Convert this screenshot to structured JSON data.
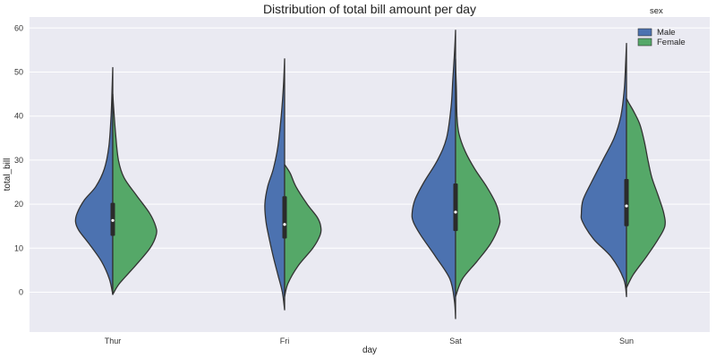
{
  "chart_data": {
    "type": "violin",
    "title": "Distribution of total bill amount per day",
    "xlabel": "day",
    "ylabel": "total_bill",
    "categories": [
      "Thur",
      "Fri",
      "Sat",
      "Sun"
    ],
    "ylim": [
      -9,
      63
    ],
    "yticks": [
      0,
      10,
      20,
      30,
      40,
      50,
      60
    ],
    "grid": true,
    "legend": {
      "title": "sex",
      "placement": "top-right"
    },
    "colors": {
      "Male": "#4c72b0",
      "Female": "#55a868",
      "background": "#eaeaf2",
      "grid": "#ffffff",
      "outline": "#333333",
      "box": "#2b2b2b"
    },
    "series": [
      {
        "name": "Male",
        "violins": [
          {
            "day": "Thur",
            "min": -0.5,
            "max": 51,
            "profile": [
              [
                -0.5,
                0
              ],
              [
                3,
                0.06
              ],
              [
                7,
                0.2
              ],
              [
                11,
                0.42
              ],
              [
                14,
                0.6
              ],
              [
                16,
                0.66
              ],
              [
                18,
                0.63
              ],
              [
                21,
                0.5
              ],
              [
                24,
                0.3
              ],
              [
                28,
                0.15
              ],
              [
                33,
                0.07
              ],
              [
                40,
                0.03
              ],
              [
                47,
                0.01
              ],
              [
                51,
                0
              ]
            ]
          },
          {
            "day": "Fri",
            "min": -4,
            "max": 53,
            "profile": [
              [
                -4,
                0
              ],
              [
                0,
                0.04
              ],
              [
                4,
                0.12
              ],
              [
                8,
                0.2
              ],
              [
                12,
                0.27
              ],
              [
                16,
                0.33
              ],
              [
                20,
                0.35
              ],
              [
                24,
                0.3
              ],
              [
                28,
                0.2
              ],
              [
                33,
                0.12
              ],
              [
                40,
                0.06
              ],
              [
                47,
                0.02
              ],
              [
                53,
                0
              ]
            ]
          },
          {
            "day": "Sat",
            "min": -6,
            "max": 59.5,
            "profile": [
              [
                -6,
                0
              ],
              [
                -2,
                0.02
              ],
              [
                3,
                0.1
              ],
              [
                8,
                0.35
              ],
              [
                13,
                0.62
              ],
              [
                16,
                0.75
              ],
              [
                18,
                0.77
              ],
              [
                21,
                0.72
              ],
              [
                25,
                0.56
              ],
              [
                30,
                0.32
              ],
              [
                35,
                0.16
              ],
              [
                42,
                0.08
              ],
              [
                48,
                0.05
              ],
              [
                52,
                0.03
              ],
              [
                56,
                0.012
              ],
              [
                59.5,
                0
              ]
            ]
          },
          {
            "day": "Sun",
            "min": -1,
            "max": 56.5,
            "profile": [
              [
                -1,
                0
              ],
              [
                3,
                0.05
              ],
              [
                8,
                0.27
              ],
              [
                12,
                0.58
              ],
              [
                16,
                0.78
              ],
              [
                18,
                0.8
              ],
              [
                21,
                0.77
              ],
              [
                25,
                0.62
              ],
              [
                30,
                0.42
              ],
              [
                35,
                0.22
              ],
              [
                40,
                0.1
              ],
              [
                46,
                0.04
              ],
              [
                52,
                0.015
              ],
              [
                56.5,
                0
              ]
            ]
          }
        ]
      },
      {
        "name": "Female",
        "violins": [
          {
            "day": "Thur",
            "min": -0.5,
            "max": 45,
            "profile": [
              [
                -0.5,
                0
              ],
              [
                2,
                0.12
              ],
              [
                6,
                0.4
              ],
              [
                10,
                0.66
              ],
              [
                13,
                0.77
              ],
              [
                15,
                0.76
              ],
              [
                18,
                0.65
              ],
              [
                22,
                0.42
              ],
              [
                26,
                0.2
              ],
              [
                30,
                0.1
              ],
              [
                36,
                0.05
              ],
              [
                42,
                0.015
              ],
              [
                45,
                0
              ]
            ]
          },
          {
            "day": "Fri",
            "min": -1,
            "max": 29,
            "profile": [
              [
                -1,
                0
              ],
              [
                2,
                0.06
              ],
              [
                6,
                0.24
              ],
              [
                10,
                0.5
              ],
              [
                13,
                0.63
              ],
              [
                15,
                0.64
              ],
              [
                17,
                0.58
              ],
              [
                20,
                0.4
              ],
              [
                24,
                0.2
              ],
              [
                27,
                0.1
              ],
              [
                29,
                0
              ]
            ]
          },
          {
            "day": "Sat",
            "min": -1,
            "max": 53,
            "profile": [
              [
                -1,
                0
              ],
              [
                3,
                0.12
              ],
              [
                7,
                0.38
              ],
              [
                11,
                0.62
              ],
              [
                15,
                0.77
              ],
              [
                17,
                0.78
              ],
              [
                20,
                0.72
              ],
              [
                24,
                0.55
              ],
              [
                28,
                0.34
              ],
              [
                32,
                0.17
              ],
              [
                36,
                0.06
              ],
              [
                40,
                0.025
              ],
              [
                46,
                0.015
              ],
              [
                50,
                0.005
              ],
              [
                53,
                0
              ]
            ]
          },
          {
            "day": "Sun",
            "min": 1,
            "max": 44,
            "profile": [
              [
                1,
                0
              ],
              [
                4,
                0.12
              ],
              [
                8,
                0.35
              ],
              [
                12,
                0.56
              ],
              [
                15,
                0.68
              ],
              [
                18,
                0.66
              ],
              [
                22,
                0.56
              ],
              [
                26,
                0.45
              ],
              [
                30,
                0.38
              ],
              [
                34,
                0.32
              ],
              [
                38,
                0.24
              ],
              [
                41,
                0.13
              ],
              [
                43,
                0.04
              ],
              [
                44,
                0
              ]
            ]
          }
        ]
      }
    ],
    "box": [
      {
        "day": "Thur",
        "q1": 12.8,
        "median": 16.3,
        "q3": 20.3
      },
      {
        "day": "Fri",
        "q1": 12.2,
        "median": 15.4,
        "q3": 21.8
      },
      {
        "day": "Sat",
        "q1": 13.9,
        "median": 18.2,
        "q3": 24.7
      },
      {
        "day": "Sun",
        "q1": 15.0,
        "median": 19.6,
        "q3": 25.7
      }
    ]
  }
}
